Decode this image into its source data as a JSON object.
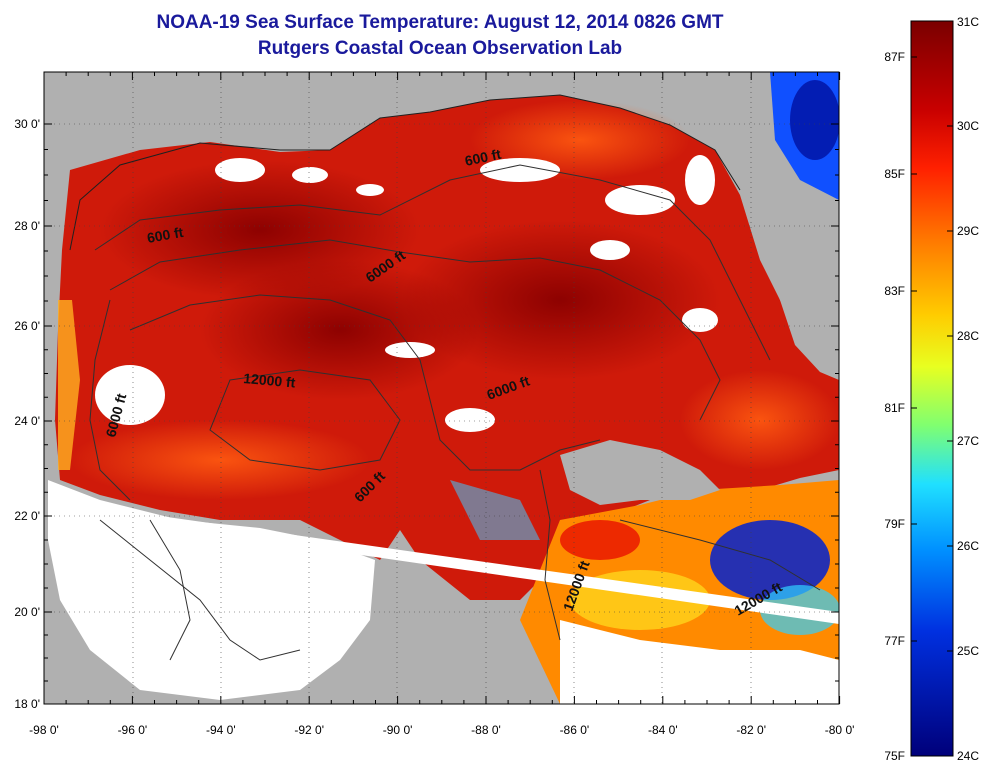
{
  "title": "NOAA-19 Sea Surface Temperature:  August 12, 2014 0826 GMT",
  "subtitle": "Rutgers Coastal Ocean Observation Lab",
  "lon_ticks": [
    "-98 0'",
    "-96 0'",
    "-94 0'",
    "-92 0'",
    "-90 0'",
    "-88 0'",
    "-86 0'",
    "-84 0'",
    "-82 0'",
    "-80 0'"
  ],
  "lat_ticks": [
    "18 0'",
    "20 0'",
    "22 0'",
    "24 0'",
    "26 0'",
    "28 0'",
    "30 0'"
  ],
  "contours": [
    {
      "label": "600 ft"
    },
    {
      "label": "600 ft"
    },
    {
      "label": "6000 ft"
    },
    {
      "label": "12000 ft"
    },
    {
      "label": "6000 ft"
    },
    {
      "label": "6000 ft"
    },
    {
      "label": "600 ft"
    },
    {
      "label": "12000 ft"
    },
    {
      "label": "12000 ft"
    }
  ],
  "colorbar": {
    "celsius": [
      "31C",
      "30C",
      "29C",
      "28C",
      "27C",
      "26C",
      "25C",
      "24C"
    ],
    "fahrenheit": [
      "87F",
      "85F",
      "83F",
      "81F",
      "79F",
      "77F",
      "75F"
    ],
    "colors": [
      "#7a0000",
      "#d40000",
      "#ff4a00",
      "#ff9a00",
      "#ffee00",
      "#9aff55",
      "#22e0ff",
      "#0080ff",
      "#0022c8",
      "#00007a"
    ]
  },
  "colors": {
    "land": "#b0b0b0",
    "cloud": "#ffffff",
    "title": "#1a1a9c"
  }
}
